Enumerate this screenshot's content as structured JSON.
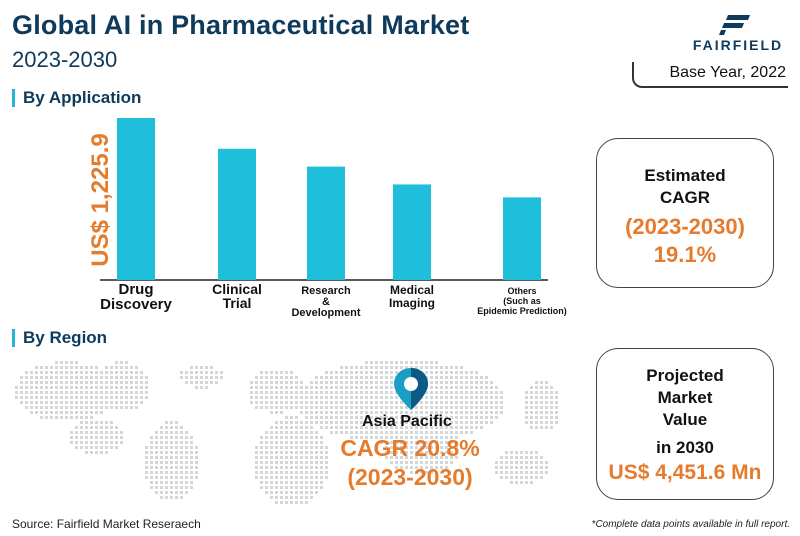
{
  "header": {
    "title": "Global AI in Pharmaceutical Market",
    "subtitle": "2023-2030",
    "logo_text": "FAIRFIELD",
    "base_year": "Base Year, 2022"
  },
  "sections": {
    "application": "By Application",
    "region": "By Region"
  },
  "chart_data": {
    "type": "bar",
    "categories": [
      "Drug Discovery",
      "Clinical Trial",
      "Research & Development",
      "Medical Imaging",
      "Others (Such as Epidemic Prediction)"
    ],
    "category_lines": [
      [
        "Drug",
        "Discovery"
      ],
      [
        "Clinical",
        "Trial"
      ],
      [
        "Research",
        "&",
        "Development"
      ],
      [
        "Medical",
        "Imaging"
      ],
      [
        "Others",
        "(Such as",
        "Epidemic Prediction)"
      ]
    ],
    "values": [
      100,
      81,
      70,
      59,
      51
    ],
    "ylabel": "US$ 1,225.9",
    "ylim": [
      0,
      100
    ],
    "grid": false,
    "bar_color": "#1fbfdc"
  },
  "cagr_card": {
    "line1": "Estimated",
    "line2": "CAGR",
    "period": "(2023-2030)",
    "value": "19.1%"
  },
  "market_card": {
    "line1": "Projected",
    "line2": "Market",
    "line3": "Value",
    "line4": "in 2030",
    "value": "US$ 4,451.6 Mn"
  },
  "region": {
    "name": "Asia Pacific",
    "cagr": "CAGR 20.8%",
    "period": "(2023-2030)",
    "pin_icon": "location-pin-icon"
  },
  "footer": {
    "source": "Source: Fairfield Market Reseraech",
    "note": "*Complete data points available in full report."
  },
  "colors": {
    "navy": "#0e3a5c",
    "orange": "#e57b2c",
    "cyan": "#1fbfdc"
  }
}
